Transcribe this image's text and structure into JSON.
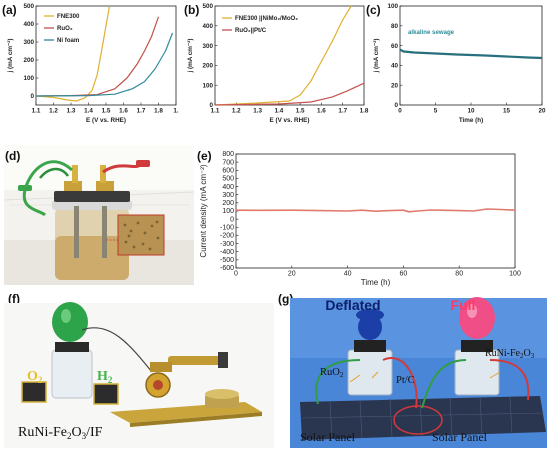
{
  "panel_labels": [
    "(a)",
    "(b)",
    "(c)",
    "(d)",
    "(e)",
    "(f)",
    "(g)"
  ],
  "photo_d": {
    "description_icon": "electrolysis-cell-photo"
  },
  "photo_f": {
    "text_o2": "O",
    "sub_o2": "2",
    "text_h2": "H",
    "sub_h2": "2",
    "caption_main": "RuNi-Fe",
    "caption_sub1": "2",
    "caption_mid": "O",
    "caption_sub2": "3",
    "caption_end": "/IF"
  },
  "photo_g": {
    "deflated": "Deflated",
    "full": "Full",
    "ruo2_main": "RuO",
    "ruo2_sub": "2",
    "ptc": "Pt/C",
    "runife_main": "RuNi-Fe",
    "runife_sub1": "2",
    "runife_mid": "O",
    "runife_sub2": "3",
    "solar_left": "Solar Panel",
    "solar_right": "Solar Panel"
  },
  "colors": {
    "yellow": "#e0b030",
    "red": "#c0504a",
    "teal": "#2f8b9a",
    "olive_red": "#c4524e",
    "dark_teal": "#28707d"
  },
  "chart_data": [
    {
      "panel": "(a)",
      "type": "line",
      "xlabel": "E (V vs. RHE)",
      "ylabel": "j (mA cm⁻²)",
      "xlim": [
        1.1,
        1.9
      ],
      "ylim": [
        -50,
        500
      ],
      "xticks": [
        "1.1",
        "1.2",
        "1.3",
        "1.4",
        "1.5",
        "1.6",
        "1.7",
        "1.8",
        "1."
      ],
      "yticks": [
        "0",
        "100",
        "200",
        "300",
        "400",
        "500"
      ],
      "legend_position": "top-left",
      "series": [
        {
          "name": "FNE300",
          "x": [
            1.1,
            1.2,
            1.28,
            1.33,
            1.38,
            1.42,
            1.45,
            1.48,
            1.52
          ],
          "y": [
            0,
            -8,
            -22,
            -28,
            -10,
            30,
            120,
            280,
            500
          ]
        },
        {
          "name": "RuO₂",
          "x": [
            1.1,
            1.3,
            1.45,
            1.55,
            1.62,
            1.68,
            1.72,
            1.76,
            1.8
          ],
          "y": [
            0,
            2,
            8,
            40,
            100,
            180,
            250,
            330,
            440
          ]
        },
        {
          "name": "Ni foam",
          "x": [
            1.1,
            1.4,
            1.55,
            1.65,
            1.72,
            1.78,
            1.84,
            1.88
          ],
          "y": [
            0,
            2,
            10,
            40,
            80,
            150,
            250,
            350
          ]
        }
      ]
    },
    {
      "panel": "(b)",
      "type": "line",
      "xlabel": "E (V vs. RHE)",
      "ylabel": "j (mA cm⁻²)",
      "xlim": [
        1.1,
        1.8
      ],
      "ylim": [
        0,
        500
      ],
      "xticks": [
        "1.1",
        "1.2",
        "1.3",
        "1.4",
        "1.5",
        "1.6",
        "1.7",
        "1.8"
      ],
      "yticks": [
        "0",
        "100",
        "200",
        "300",
        "400",
        "500"
      ],
      "legend_position": "top-left",
      "series": [
        {
          "name": "FNE300 ||NiMo₂/MoO₂",
          "x": [
            1.1,
            1.3,
            1.45,
            1.5,
            1.55,
            1.6,
            1.65,
            1.7,
            1.74
          ],
          "y": [
            0,
            10,
            20,
            50,
            120,
            220,
            320,
            430,
            500
          ]
        },
        {
          "name": "RuO₂||Pt/C",
          "x": [
            1.1,
            1.4,
            1.55,
            1.65,
            1.72,
            1.8
          ],
          "y": [
            0,
            5,
            15,
            40,
            70,
            110
          ]
        }
      ]
    },
    {
      "panel": "(c)",
      "type": "line",
      "xlabel": "Time (h)",
      "ylabel": "j (mA cm⁻²)",
      "xlim": [
        0,
        20
      ],
      "ylim": [
        0,
        100
      ],
      "xticks": [
        "0",
        "5",
        "10",
        "15",
        "20"
      ],
      "yticks": [
        "0",
        "20",
        "40",
        "60",
        "80",
        "100"
      ],
      "annotation": "alkaline sewage",
      "series": [
        {
          "name": "alkaline sewage",
          "x": [
            0,
            0.5,
            2,
            5,
            8,
            10,
            12,
            15,
            18,
            20
          ],
          "y": [
            56,
            54,
            53,
            52,
            51,
            50.5,
            50,
            49,
            48,
            47.5
          ]
        }
      ]
    },
    {
      "panel": "(e)",
      "type": "line",
      "xlabel": "Time (h)",
      "ylabel": "Current density (mA cm⁻²)",
      "xlim": [
        0,
        100
      ],
      "ylim": [
        -600,
        800
      ],
      "xticks": [
        "0",
        "20",
        "40",
        "60",
        "80",
        "100"
      ],
      "yticks": [
        "-600",
        "-500",
        "-400",
        "-300",
        "-200",
        "-100",
        "0",
        "100",
        "200",
        "300",
        "400",
        "500",
        "600",
        "700",
        "800"
      ],
      "series": [
        {
          "name": "",
          "x": [
            0,
            10,
            20,
            30,
            40,
            45,
            50,
            55,
            60,
            62,
            65,
            70,
            75,
            80,
            85,
            90,
            95,
            100
          ],
          "y": [
            110,
            108,
            110,
            105,
            100,
            110,
            98,
            105,
            110,
            90,
            100,
            112,
            108,
            105,
            100,
            125,
            118,
            110
          ]
        }
      ]
    }
  ]
}
